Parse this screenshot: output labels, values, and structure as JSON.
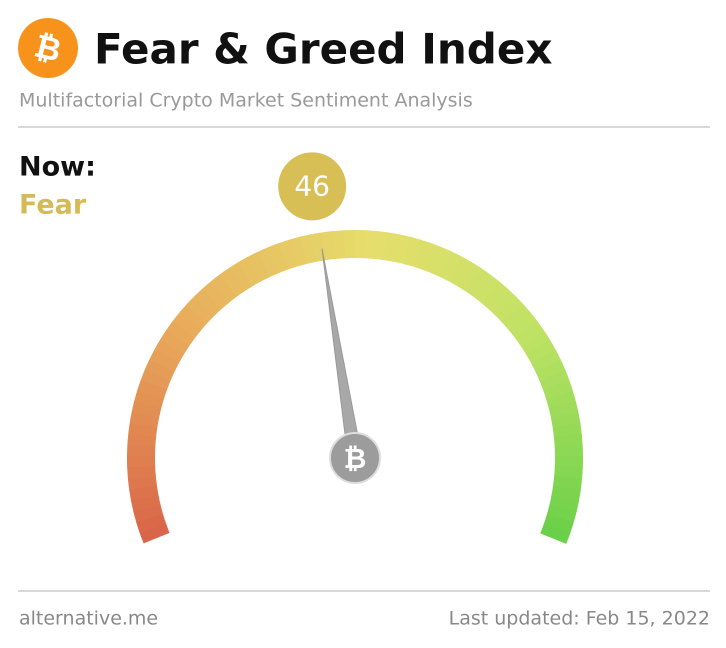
{
  "header": {
    "title": "Fear & Greed Index",
    "subtitle": "Multifactorial Crypto Market Sentiment Analysis"
  },
  "now": {
    "label": "Now:",
    "classification": "Fear",
    "value": 46,
    "range": [
      0,
      100
    ]
  },
  "footer": {
    "source": "alternative.me",
    "updated": "Last updated: Feb 15, 2022"
  }
}
